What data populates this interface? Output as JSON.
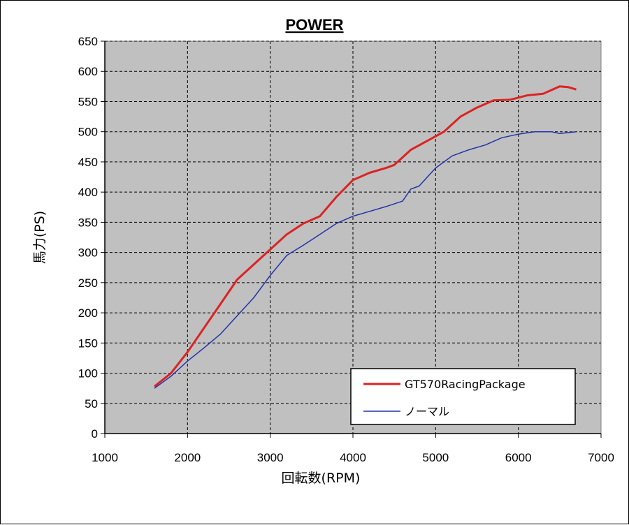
{
  "chart_data": {
    "type": "line",
    "title": "POWER",
    "xlabel": "回転数(RPM)",
    "ylabel": "馬力(PS)",
    "xlim": [
      1000,
      7000
    ],
    "ylim": [
      0,
      650
    ],
    "x_ticks": [
      1000,
      2000,
      3000,
      4000,
      5000,
      6000,
      7000
    ],
    "y_ticks": [
      0,
      50,
      100,
      150,
      200,
      250,
      300,
      350,
      400,
      450,
      500,
      550,
      600,
      650
    ],
    "grid": true,
    "background": "#c0c0c0",
    "legend_position": "bottom-right",
    "series": [
      {
        "name": "GT570RacingPackage",
        "color": "#dd2222",
        "points": [
          [
            1600,
            78
          ],
          [
            1800,
            100
          ],
          [
            2000,
            135
          ],
          [
            2200,
            175
          ],
          [
            2400,
            215
          ],
          [
            2600,
            255
          ],
          [
            2800,
            280
          ],
          [
            3000,
            305
          ],
          [
            3200,
            330
          ],
          [
            3400,
            348
          ],
          [
            3600,
            360
          ],
          [
            3800,
            392
          ],
          [
            4000,
            420
          ],
          [
            4200,
            432
          ],
          [
            4400,
            440
          ],
          [
            4500,
            445
          ],
          [
            4700,
            470
          ],
          [
            4900,
            485
          ],
          [
            5100,
            500
          ],
          [
            5300,
            525
          ],
          [
            5500,
            540
          ],
          [
            5700,
            552
          ],
          [
            5900,
            553
          ],
          [
            6100,
            560
          ],
          [
            6300,
            563
          ],
          [
            6500,
            575
          ],
          [
            6600,
            574
          ],
          [
            6700,
            570
          ]
        ]
      },
      {
        "name": "ノーマル",
        "color": "#2233aa",
        "points": [
          [
            1600,
            75
          ],
          [
            1800,
            95
          ],
          [
            2000,
            120
          ],
          [
            2200,
            142
          ],
          [
            2400,
            165
          ],
          [
            2600,
            195
          ],
          [
            2800,
            225
          ],
          [
            3000,
            262
          ],
          [
            3200,
            295
          ],
          [
            3400,
            312
          ],
          [
            3600,
            330
          ],
          [
            3800,
            348
          ],
          [
            4000,
            360
          ],
          [
            4200,
            368
          ],
          [
            4400,
            376
          ],
          [
            4600,
            385
          ],
          [
            4700,
            405
          ],
          [
            4800,
            410
          ],
          [
            5000,
            440
          ],
          [
            5200,
            460
          ],
          [
            5400,
            470
          ],
          [
            5600,
            478
          ],
          [
            5800,
            490
          ],
          [
            6000,
            496
          ],
          [
            6200,
            500
          ],
          [
            6400,
            500
          ],
          [
            6500,
            497
          ],
          [
            6700,
            500
          ]
        ]
      }
    ]
  }
}
